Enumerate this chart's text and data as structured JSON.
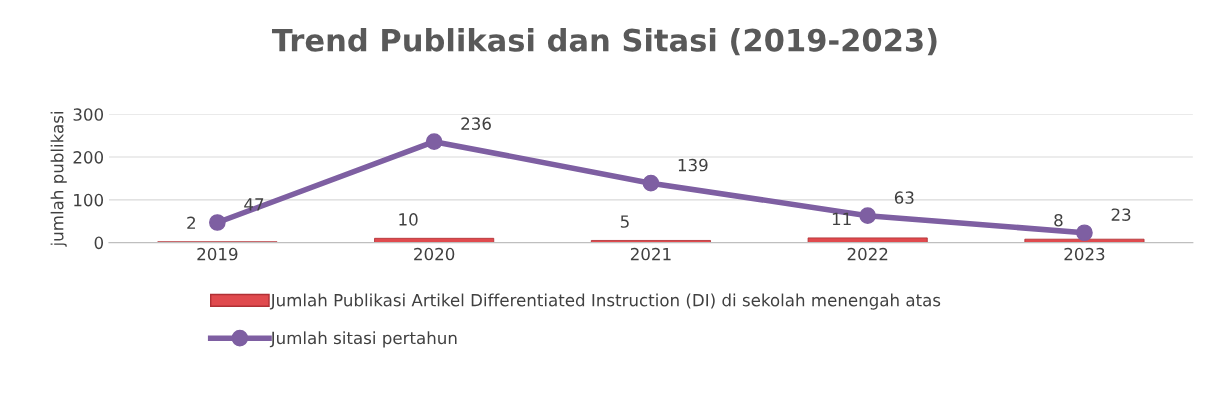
{
  "chart_data": {
    "type": "bar",
    "title": "Trend Publikasi dan Sitasi (2019-2023)",
    "ylabel": "jumlah publikasi",
    "categories": [
      "2019",
      "2020",
      "2021",
      "2022",
      "2023"
    ],
    "series": [
      {
        "name": "Jumlah Publikasi Artikel Differentiated Instruction (DI) di sekolah menengah atas",
        "color": "#e04a4e",
        "values": [
          2,
          10,
          5,
          11,
          8
        ]
      },
      {
        "name": "Jumlah sitasi pertahun",
        "type": "line",
        "color": "#7e5fa2",
        "values": [
          47,
          236,
          139,
          63,
          23
        ],
        "marker": "circle"
      }
    ],
    "ylim": [
      0,
      300
    ],
    "yticks": [
      0,
      100,
      200,
      300
    ],
    "grid": "y",
    "legend": "bottom",
    "data_labels": true
  }
}
